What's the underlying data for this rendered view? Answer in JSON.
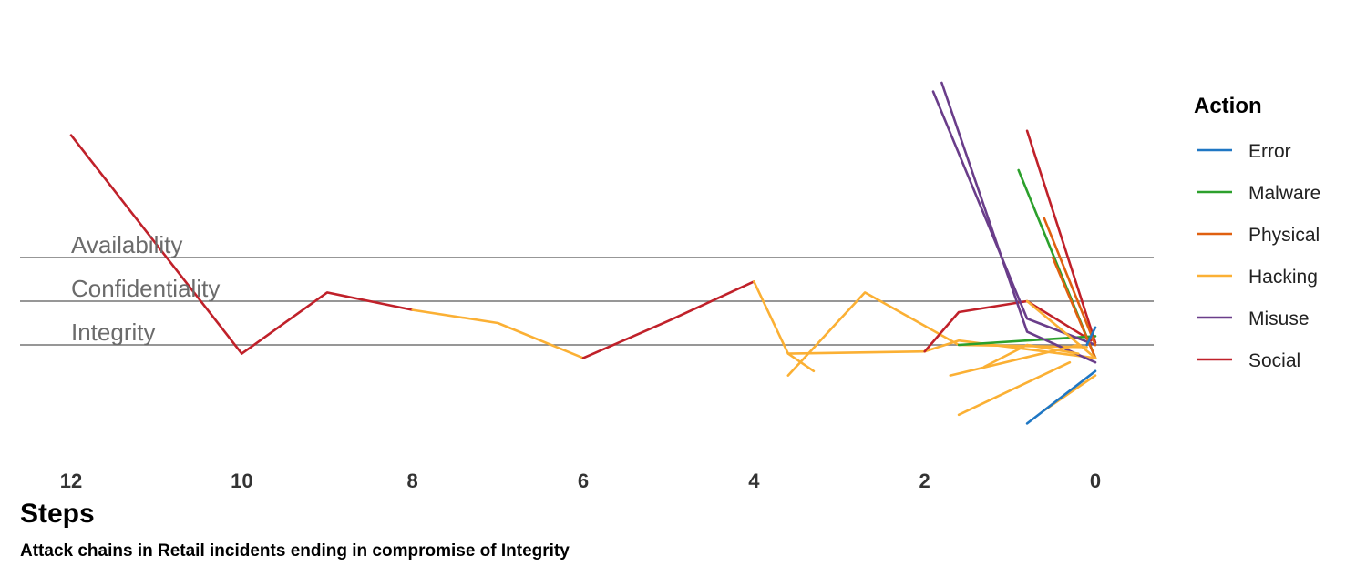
{
  "chart_data": {
    "type": "line",
    "xlabel": "Steps",
    "caption": "Attack chains in Retail incidents ending in compromise of Integrity",
    "x_ticks": [
      "12",
      "10",
      "8",
      "6",
      "4",
      "2",
      "0"
    ],
    "xlim": [
      12.1,
      -0.7
    ],
    "ylim": [
      0,
      5.5
    ],
    "bands": [
      {
        "label": "Availability",
        "y": 3
      },
      {
        "label": "Confidentiality",
        "y": 2
      },
      {
        "label": "Integrity",
        "y": 1
      }
    ],
    "legend": {
      "title": "Action",
      "position": "right",
      "items": [
        {
          "name": "Error",
          "color": "#1f77c4"
        },
        {
          "name": "Malware",
          "color": "#2ca02c"
        },
        {
          "name": "Physical",
          "color": "#e06010"
        },
        {
          "name": "Hacking",
          "color": "#fbb034"
        },
        {
          "name": "Misuse",
          "color": "#6a3d8a"
        },
        {
          "name": "Social",
          "color": "#c0212a"
        }
      ]
    },
    "chains": [
      {
        "name": "Social",
        "points": [
          [
            12.0,
            5.8
          ],
          [
            10.0,
            0.8
          ],
          [
            9.0,
            2.2
          ],
          [
            8.0,
            1.8
          ]
        ]
      },
      {
        "name": "Hacking",
        "points": [
          [
            8.0,
            1.8
          ],
          [
            7.0,
            1.5
          ],
          [
            6.0,
            0.7
          ]
        ]
      },
      {
        "name": "Social",
        "points": [
          [
            6.0,
            0.7
          ],
          [
            5.0,
            1.55
          ],
          [
            4.0,
            2.45
          ]
        ]
      },
      {
        "name": "Hacking",
        "points": [
          [
            4.0,
            2.45
          ],
          [
            3.6,
            0.8
          ],
          [
            2.0,
            0.85
          ]
        ]
      },
      {
        "name": "Hacking",
        "points": [
          [
            3.6,
            0.8
          ],
          [
            3.3,
            0.4
          ]
        ]
      },
      {
        "name": "Hacking",
        "points": [
          [
            2.0,
            0.85
          ],
          [
            1.6,
            1.1
          ],
          [
            0.0,
            0.7
          ]
        ]
      },
      {
        "name": "Hacking",
        "points": [
          [
            3.6,
            0.3
          ],
          [
            2.7,
            2.2
          ],
          [
            1.6,
            1.0
          ],
          [
            0.1,
            0.95
          ]
        ]
      },
      {
        "name": "Social",
        "points": [
          [
            2.0,
            0.85
          ],
          [
            1.6,
            1.75
          ],
          [
            0.8,
            2.0
          ],
          [
            0.05,
            1.1
          ]
        ]
      },
      {
        "name": "Malware",
        "points": [
          [
            1.6,
            1.0
          ],
          [
            0.0,
            1.2
          ]
        ]
      },
      {
        "name": "Malware",
        "points": [
          [
            0.9,
            5.0
          ],
          [
            0.0,
            0.7
          ]
        ]
      },
      {
        "name": "Misuse",
        "points": [
          [
            1.8,
            7.0
          ],
          [
            0.8,
            1.3
          ],
          [
            0.0,
            0.6
          ]
        ]
      },
      {
        "name": "Misuse",
        "points": [
          [
            1.9,
            6.8
          ],
          [
            0.8,
            1.6
          ],
          [
            0.0,
            1.0
          ]
        ]
      },
      {
        "name": "Social",
        "points": [
          [
            0.8,
            5.9
          ],
          [
            0.0,
            1.05
          ]
        ]
      },
      {
        "name": "Physical",
        "points": [
          [
            0.6,
            3.9
          ],
          [
            0.0,
            1.0
          ]
        ]
      },
      {
        "name": "Physical",
        "points": [
          [
            0.5,
            3.0
          ],
          [
            0.0,
            0.7
          ]
        ]
      },
      {
        "name": "Hacking",
        "points": [
          [
            1.7,
            0.3
          ],
          [
            0.2,
            1.0
          ]
        ]
      },
      {
        "name": "Hacking",
        "points": [
          [
            1.3,
            0.5
          ],
          [
            0.8,
            1.0
          ],
          [
            0.2,
            0.8
          ]
        ]
      },
      {
        "name": "Hacking",
        "points": [
          [
            0.8,
            2.0
          ],
          [
            0.0,
            0.7
          ]
        ]
      },
      {
        "name": "Hacking",
        "points": [
          [
            0.6,
            -0.5
          ],
          [
            0.0,
            0.3
          ]
        ]
      },
      {
        "name": "Hacking",
        "points": [
          [
            1.6,
            -0.6
          ],
          [
            0.3,
            0.6
          ]
        ]
      },
      {
        "name": "Error",
        "points": [
          [
            0.8,
            -0.8
          ],
          [
            0.0,
            0.4
          ]
        ]
      },
      {
        "name": "Error",
        "points": [
          [
            0.0,
            1.4
          ],
          [
            0.1,
            1.0
          ]
        ]
      }
    ]
  }
}
